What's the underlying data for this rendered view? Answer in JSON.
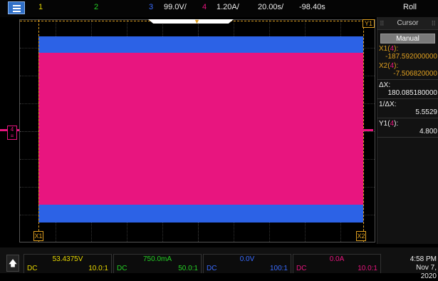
{
  "topbar": {
    "ch1": "1",
    "ch2": "2",
    "ch3": "3",
    "ch3_scale": "99.0V/",
    "ch4": "4",
    "ch4_scale": "1.20A/",
    "timebase": "20.00s/",
    "delay": "-98.40s",
    "mode": "Roll"
  },
  "grid": {
    "x1_label": "X1",
    "x2_label": "X2",
    "y1_tag": "Y1",
    "ch4_marker": "4"
  },
  "cursor_panel": {
    "title": "Cursor",
    "mode": "Manual",
    "x1_label": "X1",
    "x1_ch": "4",
    "x1_value": "-187.592000000",
    "x2_label": "X2",
    "x2_ch": "4",
    "x2_value": "-7.506820000",
    "dx_label": "ΔX:",
    "dx_value": "180.085180000",
    "inv_dx_label": "1/ΔX:",
    "inv_dx_value": "5.5529",
    "y1_label": "Y1",
    "y1_ch": "4",
    "y1_value": "4.800"
  },
  "channels": [
    {
      "value": "53.4375V",
      "coupling": "DC",
      "probe": "10.0:1",
      "color": "#e8d800"
    },
    {
      "value": "750.0mA",
      "coupling": "DC",
      "probe": "50.0:1",
      "color": "#25d025"
    },
    {
      "value": "0.0V",
      "coupling": "DC",
      "probe": "100:1",
      "color": "#3a6cff"
    },
    {
      "value": "0.0A",
      "coupling": "DC",
      "probe": "10.0:1",
      "color": "#e8157f"
    }
  ],
  "clock": {
    "time": "4:58 PM",
    "date": "Nov 7, 2020"
  },
  "colors": {
    "ch1": "#e8d800",
    "ch2": "#25d025",
    "ch3": "#3a6cff",
    "ch4": "#e8157f",
    "cursor": "#e0a020",
    "menu": "#2f6fc8"
  }
}
